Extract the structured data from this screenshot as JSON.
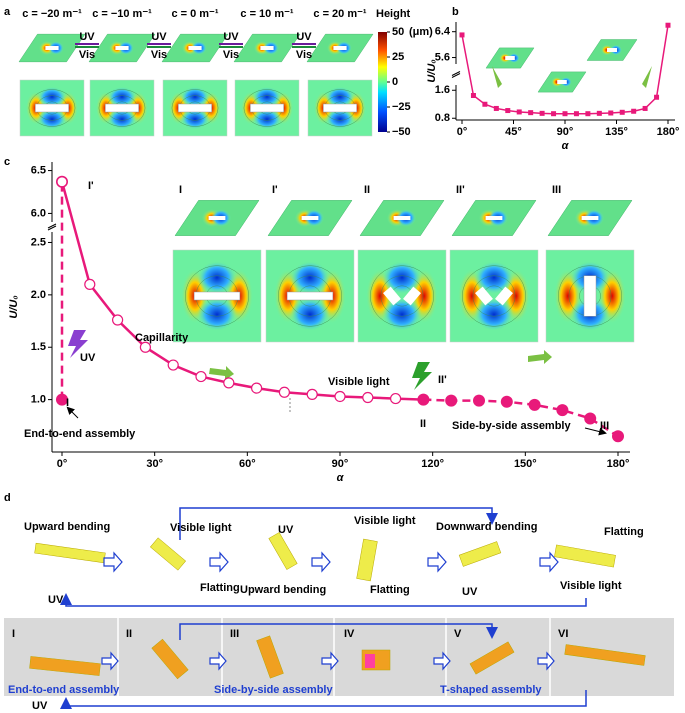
{
  "panel_labels": [
    "a",
    "b",
    "c",
    "d"
  ],
  "panel_a": {
    "columns": [
      "c = −20 m⁻¹",
      "c = −10 m⁻¹",
      "c = 0 m⁻¹",
      "c = 10 m⁻¹",
      "c = 20 m⁻¹"
    ],
    "switches": [
      {
        "top": "UV",
        "bottom": "Vis"
      },
      {
        "top": "UV",
        "bottom": "Vis"
      },
      {
        "top": "UV",
        "bottom": "Vis"
      },
      {
        "top": "UV",
        "bottom": "Vis"
      }
    ],
    "colorbar": {
      "title": "Height",
      "unit": "(μm)",
      "clim": [
        -50,
        50
      ],
      "ticks": [
        50,
        25,
        0,
        {
          "value": -25,
          "label": "−25"
        },
        {
          "value": -50,
          "label": "−50"
        }
      ]
    }
  },
  "chart_data": [
    {
      "type": "line",
      "x_label": "α",
      "y_label": "U/U₀",
      "xlim": [
        0,
        180
      ],
      "xticks": [
        {
          "value": 0,
          "label": "0°"
        },
        {
          "value": 45,
          "label": "45°"
        },
        {
          "value": 90,
          "label": "90°"
        },
        {
          "value": 135,
          "label": "135°"
        },
        {
          "value": 180,
          "label": "180°"
        }
      ],
      "ylim": [
        0.75,
        6.7
      ],
      "ybreak": [
        1.75,
        5.4
      ],
      "yticks": [
        0.8,
        1.6,
        5.6,
        6.4
      ],
      "series": [
        {
          "color": "#e8197a",
          "marker": "square",
          "line": "solid",
          "x": [
            0,
            10,
            20,
            30,
            40,
            50,
            60,
            70,
            80,
            90,
            100,
            110,
            120,
            130,
            140,
            150,
            160,
            170,
            180
          ],
          "values": [
            6.3,
            1.45,
            1.2,
            1.08,
            1.02,
            0.98,
            0.96,
            0.94,
            0.93,
            0.93,
            0.93,
            0.93,
            0.94,
            0.95,
            0.97,
            1.0,
            1.08,
            1.4,
            6.6
          ]
        }
      ]
    },
    {
      "type": "line",
      "x_label": "α",
      "y_label": "U/U₀",
      "xlim": [
        0,
        180
      ],
      "xticks": [
        {
          "value": 0,
          "label": "0°"
        },
        {
          "value": 30,
          "label": "30°"
        },
        {
          "value": 60,
          "label": "60°"
        },
        {
          "value": 90,
          "label": "90°"
        },
        {
          "value": 120,
          "label": "120°"
        },
        {
          "value": 150,
          "label": "150°"
        },
        {
          "value": 180,
          "label": "180°"
        }
      ],
      "ylim": [
        0.5,
        6.6
      ],
      "ybreak": [
        2.6,
        5.9
      ],
      "yticks": [
        {
          "value": 1.0,
          "label": "1.0"
        },
        1.5,
        {
          "value": 2.0,
          "label": "2.0"
        },
        2.5,
        {
          "value": 6.0,
          "label": "6.0"
        },
        6.5
      ],
      "series": [
        {
          "color": "#e8197a",
          "marker": "filled",
          "line": "dashed",
          "x": [
            0,
            0
          ],
          "values": [
            1.0,
            6.37
          ]
        },
        {
          "color": "#e8197a",
          "marker": "open",
          "line": "solid",
          "x": [
            0,
            9,
            18,
            27,
            36,
            45,
            54,
            63,
            72,
            81,
            90,
            99,
            108,
            117
          ],
          "values": [
            6.37,
            2.1,
            1.76,
            1.5,
            1.33,
            1.22,
            1.16,
            1.11,
            1.07,
            1.05,
            1.03,
            1.02,
            1.01,
            1.0
          ]
        },
        {
          "color": "#e8197a",
          "marker": "filled",
          "line": "dashed",
          "x": [
            117,
            126,
            135,
            144,
            153,
            162,
            171,
            180
          ],
          "values": [
            1.0,
            0.99,
            0.99,
            0.98,
            0.95,
            0.9,
            0.82,
            0.65
          ]
        }
      ],
      "annotations": [
        "I'",
        "I",
        "UV",
        "Capillarity",
        "Visible light",
        "II'",
        "II",
        "End-to-end assembly",
        "Side-by-side assembly",
        "III"
      ],
      "inset_labels": [
        "I",
        "I'",
        "II",
        "II'",
        "III"
      ]
    }
  ],
  "panel_d": {
    "row1_labels": [
      "Upward bending",
      "Visible light",
      "Flatting",
      "UV",
      "Upward bending",
      "Visible light",
      "Flatting",
      "Downward bending",
      "UV",
      "Flatting",
      "Visible light",
      "UV"
    ],
    "row2_stages": [
      "I",
      "II",
      "III",
      "IV",
      "V",
      "VI"
    ],
    "row2_labels": [
      "End-to-end assembly",
      "Side-by-side assembly",
      "T-shaped assembly"
    ],
    "row2_return": "UV"
  }
}
